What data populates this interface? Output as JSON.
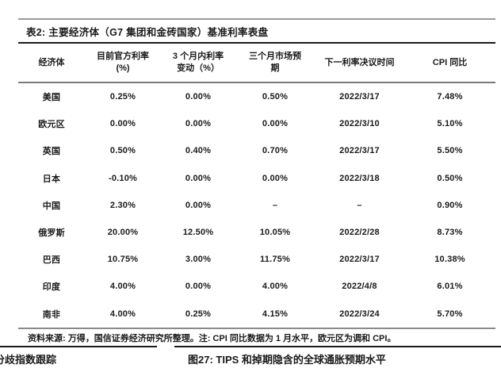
{
  "colors": {
    "background": "#ffffff",
    "text": "#1a1a1a",
    "rule_gray": "#9a9a9a",
    "rule_black": "#1a1a1a"
  },
  "table": {
    "title": "表2: 主要经济体（G7 集团和金砖国家）基准利率表盘",
    "columns": [
      {
        "l1": "经济体",
        "l2": ""
      },
      {
        "l1": "目前官方利率",
        "l2": "(%)"
      },
      {
        "l1": "3 个月内利率",
        "l2": "变动（%）"
      },
      {
        "l1": "三个月市场预",
        "l2": "期"
      },
      {
        "l1": "下一利率决议时间",
        "l2": ""
      },
      {
        "l1": "CPI 同比",
        "l2": ""
      }
    ],
    "rows": [
      {
        "economy": "美国",
        "current_rate": "0.25%",
        "change_3m": "0.00%",
        "market_exp_3m": "0.50%",
        "next_meeting": "2022/3/17",
        "cpi_yoy": "7.48%"
      },
      {
        "economy": "欧元区",
        "current_rate": "0.00%",
        "change_3m": "0.00%",
        "market_exp_3m": "0.00%",
        "next_meeting": "2022/3/10",
        "cpi_yoy": "5.10%"
      },
      {
        "economy": "英国",
        "current_rate": "0.50%",
        "change_3m": "0.40%",
        "market_exp_3m": "0.70%",
        "next_meeting": "2022/3/17",
        "cpi_yoy": "5.50%"
      },
      {
        "economy": "日本",
        "current_rate": "-0.10%",
        "change_3m": "0.00%",
        "market_exp_3m": "0.00%",
        "next_meeting": "2022/3/18",
        "cpi_yoy": "0.50%"
      },
      {
        "economy": "中国",
        "current_rate": "2.30%",
        "change_3m": "0.00%",
        "market_exp_3m": "–",
        "next_meeting": "–",
        "cpi_yoy": "0.90%"
      },
      {
        "economy": "俄罗斯",
        "current_rate": "20.00%",
        "change_3m": "12.50%",
        "market_exp_3m": "10.05%",
        "next_meeting": "2022/2/28",
        "cpi_yoy": "8.73%"
      },
      {
        "economy": "巴西",
        "current_rate": "10.75%",
        "change_3m": "3.00%",
        "market_exp_3m": "11.75%",
        "next_meeting": "2022/3/17",
        "cpi_yoy": "10.38%"
      },
      {
        "economy": "印度",
        "current_rate": "4.00%",
        "change_3m": "0.00%",
        "market_exp_3m": "4.00%",
        "next_meeting": "2022/4/8",
        "cpi_yoy": "6.01%"
      },
      {
        "economy": "南非",
        "current_rate": "4.00%",
        "change_3m": "0.25%",
        "market_exp_3m": "4.15%",
        "next_meeting": "2022/3/24",
        "cpi_yoy": "5.70%"
      }
    ],
    "source_note": "资料来源: 万得，国信证券经济研究所整理。注: CPI 同比数据为 1 月水平，欧元区为调和 CPI。"
  },
  "footer": {
    "left_caption": "分歧指数跟踪",
    "right_caption": "图27: TIPS 和掉期隐含的全球通胀预期水平"
  }
}
